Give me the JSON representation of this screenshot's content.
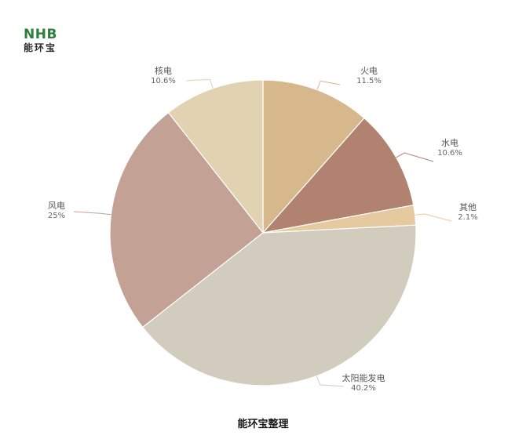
{
  "logo": {
    "latin": "NHB",
    "cjk": "能环宝"
  },
  "caption": "能环宝整理",
  "chart_data": {
    "type": "pie",
    "title": "",
    "slices": [
      {
        "label": "火电",
        "value_label": "11.5%",
        "value": 11.5,
        "color": "#d6b88c"
      },
      {
        "label": "水电",
        "value_label": "10.6%",
        "value": 10.6,
        "color": "#b0826f"
      },
      {
        "label": "其他",
        "value_label": "2.1%",
        "value": 2.1,
        "color": "#e5c99f"
      },
      {
        "label": "太阳能发电",
        "value_label": "40.2%",
        "value": 40.2,
        "color": "#d2ccbe"
      },
      {
        "label": "风电",
        "value_label": "25%",
        "value": 25,
        "color": "#c3a194"
      },
      {
        "label": "核电",
        "value_label": "10.6%",
        "value": 10.6,
        "color": "#e1d3b2"
      }
    ],
    "start": "12 o'clock",
    "direction": "clockwise"
  }
}
